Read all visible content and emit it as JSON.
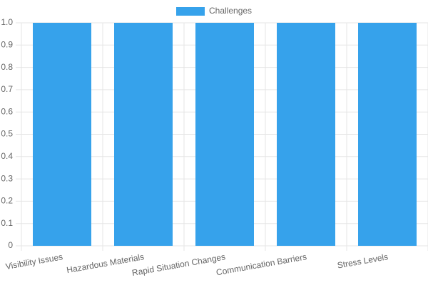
{
  "chart_data": {
    "type": "bar",
    "categories": [
      "Visibility Issues",
      "Hazardous Materials",
      "Rapid Situation Changes",
      "Communication Barriers",
      "Stress Levels"
    ],
    "series": [
      {
        "name": "Challenges",
        "color": "#36a2eb",
        "values": [
          1,
          1,
          1,
          1,
          1
        ]
      }
    ],
    "ylim": [
      0,
      1
    ],
    "yticks": [
      0,
      0.1,
      0.2,
      0.3,
      0.4,
      0.5,
      0.6,
      0.7,
      0.8,
      0.9,
      {
        "value": 1,
        "label": "1.0"
      }
    ],
    "grid": true,
    "legend": "top"
  }
}
